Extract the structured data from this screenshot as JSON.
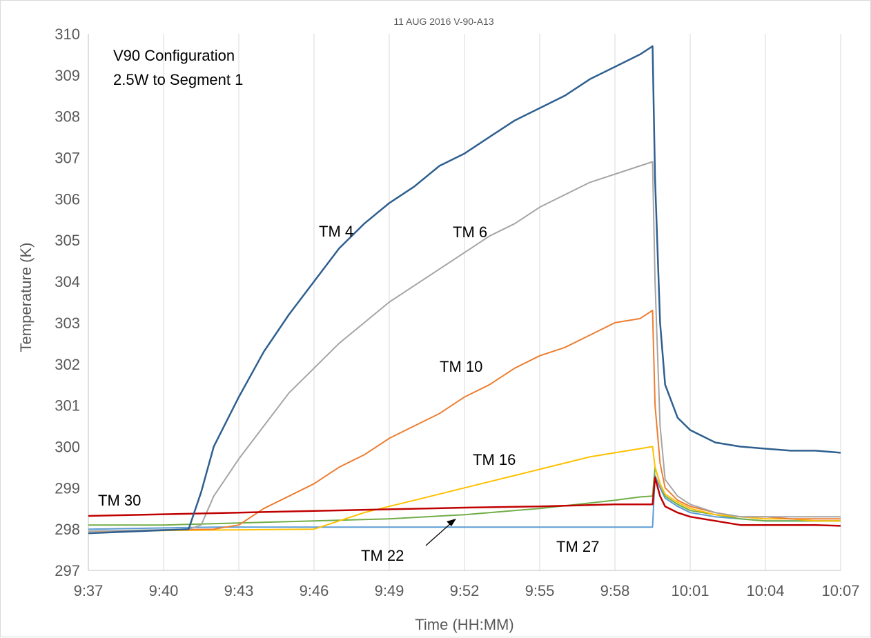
{
  "chart_data": {
    "type": "line",
    "title": "11 AUG 2016 V-90-A13",
    "xlabel": "Time (HH:MM)",
    "ylabel": "Temperature  (K)",
    "xlim": [
      "9:37",
      "10:07"
    ],
    "ylim": [
      297,
      310
    ],
    "x_ticks": [
      "9:37",
      "9:40",
      "9:43",
      "9:46",
      "9:49",
      "9:52",
      "9:55",
      "9:58",
      "10:01",
      "10:04",
      "10:07"
    ],
    "y_ticks": [
      297,
      298,
      299,
      300,
      301,
      302,
      303,
      304,
      305,
      306,
      307,
      308,
      309,
      310
    ],
    "grid": "vertical",
    "annotations": [
      "V90 Configuration",
      "2.5W to Segment 1"
    ],
    "series": [
      {
        "name": "TM 4",
        "color": "#2e5f8f",
        "x": [
          "9:37",
          "9:41",
          "9:41:30",
          "9:42",
          "9:43",
          "9:44",
          "9:45",
          "9:46",
          "9:47",
          "9:48",
          "9:49",
          "9:50",
          "9:51",
          "9:52",
          "9:53",
          "9:54",
          "9:55",
          "9:56",
          "9:57",
          "9:58",
          "9:59",
          "9:59:30",
          "9:59:36",
          "9:59:48",
          "10:00",
          "10:00:30",
          "10:01",
          "10:02",
          "10:03",
          "10:04",
          "10:05",
          "10:06",
          "10:07"
        ],
        "y": [
          297.9,
          298.0,
          298.9,
          300.0,
          301.2,
          302.3,
          303.2,
          304.0,
          304.8,
          305.4,
          305.9,
          306.3,
          306.8,
          307.1,
          307.5,
          307.9,
          308.2,
          308.5,
          308.9,
          309.2,
          309.5,
          309.7,
          306.5,
          303.0,
          301.5,
          300.7,
          300.4,
          300.1,
          300.0,
          299.95,
          299.9,
          299.9,
          299.85
        ]
      },
      {
        "name": "TM 6",
        "color": "#a5a5a5",
        "x": [
          "9:37",
          "9:41",
          "9:41:30",
          "9:42",
          "9:43",
          "9:44",
          "9:45",
          "9:46",
          "9:47",
          "9:48",
          "9:49",
          "9:50",
          "9:51",
          "9:52",
          "9:53",
          "9:54",
          "9:55",
          "9:56",
          "9:57",
          "9:58",
          "9:59",
          "9:59:30",
          "9:59:36",
          "9:59:48",
          "10:00",
          "10:00:30",
          "10:01",
          "10:02",
          "10:03",
          "10:04",
          "10:05",
          "10:06",
          "10:07"
        ],
        "y": [
          297.95,
          298.0,
          298.1,
          298.8,
          299.7,
          300.5,
          301.3,
          301.9,
          302.5,
          303.0,
          303.5,
          303.9,
          304.3,
          304.7,
          305.1,
          305.4,
          305.8,
          306.1,
          306.4,
          306.6,
          306.8,
          306.9,
          304.0,
          300.5,
          299.2,
          298.8,
          298.6,
          298.4,
          298.3,
          298.3,
          298.3,
          298.3,
          298.3
        ]
      },
      {
        "name": "TM 10",
        "color": "#ed7d31",
        "x": [
          "9:37",
          "9:42",
          "9:43",
          "9:44",
          "9:45",
          "9:46",
          "9:47",
          "9:48",
          "9:49",
          "9:50",
          "9:51",
          "9:52",
          "9:53",
          "9:54",
          "9:55",
          "9:56",
          "9:57",
          "9:58",
          "9:59",
          "9:59:30",
          "9:59:36",
          "9:59:48",
          "10:00",
          "10:00:30",
          "10:01",
          "10:02",
          "10:03",
          "10:04",
          "10:05",
          "10:06",
          "10:07"
        ],
        "y": [
          297.95,
          298.0,
          298.1,
          298.5,
          298.8,
          299.1,
          299.5,
          299.8,
          300.2,
          300.5,
          300.8,
          301.2,
          301.5,
          301.9,
          302.2,
          302.4,
          302.7,
          303.0,
          303.1,
          303.3,
          301.0,
          299.6,
          299.0,
          298.7,
          298.55,
          298.4,
          298.3,
          298.3,
          298.25,
          298.25,
          298.25
        ]
      },
      {
        "name": "TM 16",
        "color": "#ffc000",
        "x": [
          "9:37",
          "9:46",
          "9:47",
          "9:48",
          "9:49",
          "9:50",
          "9:51",
          "9:52",
          "9:53",
          "9:54",
          "9:55",
          "9:56",
          "9:57",
          "9:58",
          "9:59",
          "9:59:30",
          "9:59:36",
          "9:59:48",
          "10:00",
          "10:00:30",
          "10:01",
          "10:02",
          "10:03",
          "10:04",
          "10:05",
          "10:06",
          "10:07"
        ],
        "y": [
          297.95,
          298.0,
          298.2,
          298.4,
          298.55,
          298.7,
          298.85,
          299.0,
          299.15,
          299.3,
          299.45,
          299.6,
          299.75,
          299.85,
          299.95,
          300.0,
          299.5,
          299.1,
          298.85,
          298.65,
          298.5,
          298.35,
          298.3,
          298.25,
          298.25,
          298.2,
          298.2
        ]
      },
      {
        "name": "TM 22",
        "color": "#70ad47",
        "x": [
          "9:37",
          "9:40",
          "9:43",
          "9:46",
          "9:49",
          "9:52",
          "9:55",
          "9:58",
          "9:59",
          "9:59:30",
          "9:59:36",
          "9:59:48",
          "10:00",
          "10:00:30",
          "10:01",
          "10:02",
          "10:03",
          "10:04",
          "10:05",
          "10:06",
          "10:07"
        ],
        "y": [
          298.1,
          298.1,
          298.15,
          298.2,
          298.25,
          298.35,
          298.5,
          298.7,
          298.78,
          298.8,
          299.5,
          299.1,
          298.8,
          298.6,
          298.45,
          298.35,
          298.25,
          298.2,
          298.2,
          298.2,
          298.2
        ]
      },
      {
        "name": "TM 27",
        "color": "#5b9bd5",
        "x": [
          "9:37",
          "9:42",
          "9:59",
          "9:59:30",
          "9:59:36",
          "9:59:48",
          "10:00",
          "10:00:30",
          "10:01",
          "10:02",
          "10:03",
          "10:04",
          "10:05",
          "10:06",
          "10:07"
        ],
        "y": [
          298.0,
          298.05,
          298.05,
          298.05,
          299.3,
          299.0,
          298.75,
          298.55,
          298.4,
          298.3,
          298.25,
          298.2,
          298.2,
          298.2,
          298.2
        ]
      },
      {
        "name": "TM 30",
        "color": "#c00000",
        "x": [
          "9:37",
          "9:40",
          "9:43",
          "9:46",
          "9:49",
          "9:52",
          "9:55",
          "9:58",
          "9:59",
          "9:59:30",
          "9:59:36",
          "9:59:48",
          "10:00",
          "10:00:30",
          "10:01",
          "10:02",
          "10:03",
          "10:04",
          "10:05",
          "10:06",
          "10:07"
        ],
        "y": [
          298.32,
          298.36,
          298.4,
          298.44,
          298.48,
          298.52,
          298.55,
          298.6,
          298.6,
          298.6,
          299.25,
          298.8,
          298.55,
          298.4,
          298.3,
          298.2,
          298.1,
          298.1,
          298.1,
          298.1,
          298.08
        ]
      }
    ],
    "series_labels": [
      {
        "text": "TM 4",
        "series": "TM 4"
      },
      {
        "text": "TM 6",
        "series": "TM 6"
      },
      {
        "text": "TM  10",
        "series": "TM 10"
      },
      {
        "text": "TM  16",
        "series": "TM 16"
      },
      {
        "text": "TM  30",
        "series": "TM 30"
      },
      {
        "text": "TM  22",
        "series": "TM 22"
      },
      {
        "text": "TM  27",
        "series": "TM 27"
      }
    ]
  }
}
